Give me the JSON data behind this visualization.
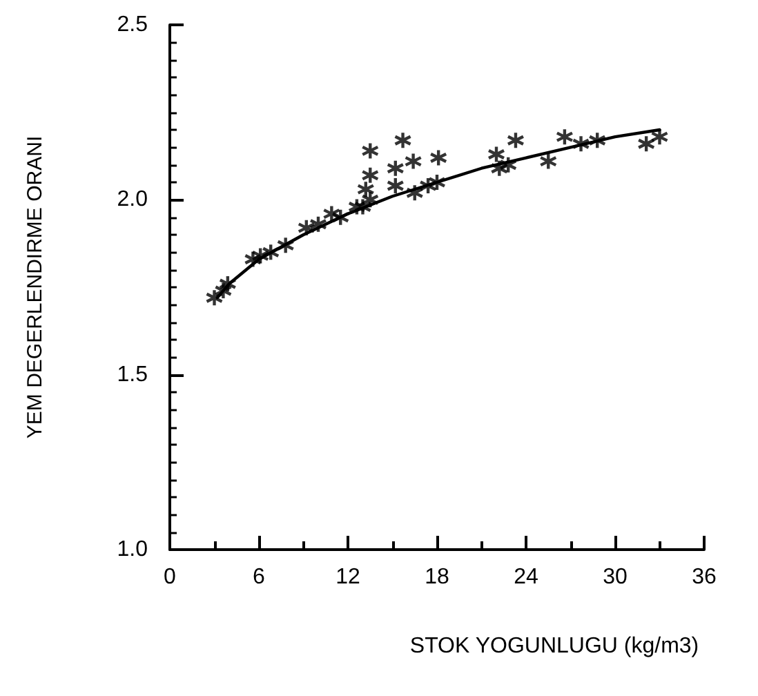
{
  "chart_data": {
    "type": "scatter",
    "xlabel": "STOK YOGUNLUGU (kg/m3)",
    "ylabel": "YEM DEGERLENDIRME ORANI",
    "xlim": [
      0,
      36
    ],
    "xticks": [
      0,
      6,
      12,
      18,
      24,
      30,
      36
    ],
    "ylim": [
      1.0,
      2.5
    ],
    "yticks": [
      {
        "value": 1.0,
        "label": "1.0"
      },
      {
        "value": 1.5,
        "label": "1.5"
      },
      {
        "value": 2.0,
        "label": "2.0"
      },
      {
        "value": 2.5,
        "label": "2.5"
      }
    ],
    "grid": false,
    "series": [
      {
        "color": "#000000",
        "marker": "cross",
        "x": [
          3,
          3.6,
          3.9,
          5.6,
          6.1,
          6.8,
          7.8,
          9.2,
          10,
          10.9,
          11.5,
          12.6,
          13,
          13.5,
          13.2,
          13.5,
          13.5,
          15.7,
          15.2,
          16.4,
          15.2,
          16.5,
          17.4,
          18.1,
          18,
          22,
          22.2,
          22.8,
          23.3,
          25.5,
          26.6,
          27.7,
          28.8,
          32.1,
          33
        ],
        "values": [
          1.72,
          1.74,
          1.76,
          1.83,
          1.84,
          1.85,
          1.87,
          1.92,
          1.93,
          1.96,
          1.95,
          1.98,
          1.98,
          2.0,
          2.03,
          2.14,
          2.07,
          2.17,
          2.09,
          2.11,
          2.04,
          2.02,
          2.04,
          2.12,
          2.05,
          2.13,
          2.09,
          2.1,
          2.17,
          2.11,
          2.18,
          2.16,
          2.17,
          2.16,
          2.18
        ]
      },
      {
        "type": "line",
        "color": "#000000",
        "marker": "none",
        "line_style": "solid",
        "x": [
          3.2,
          4,
          6,
          9,
          12,
          15,
          18,
          21,
          24,
          27,
          30,
          33
        ],
        "values": [
          1.72,
          1.76,
          1.83,
          1.9,
          1.96,
          2.01,
          2.05,
          2.09,
          2.12,
          2.15,
          2.18,
          2.2
        ]
      }
    ]
  }
}
